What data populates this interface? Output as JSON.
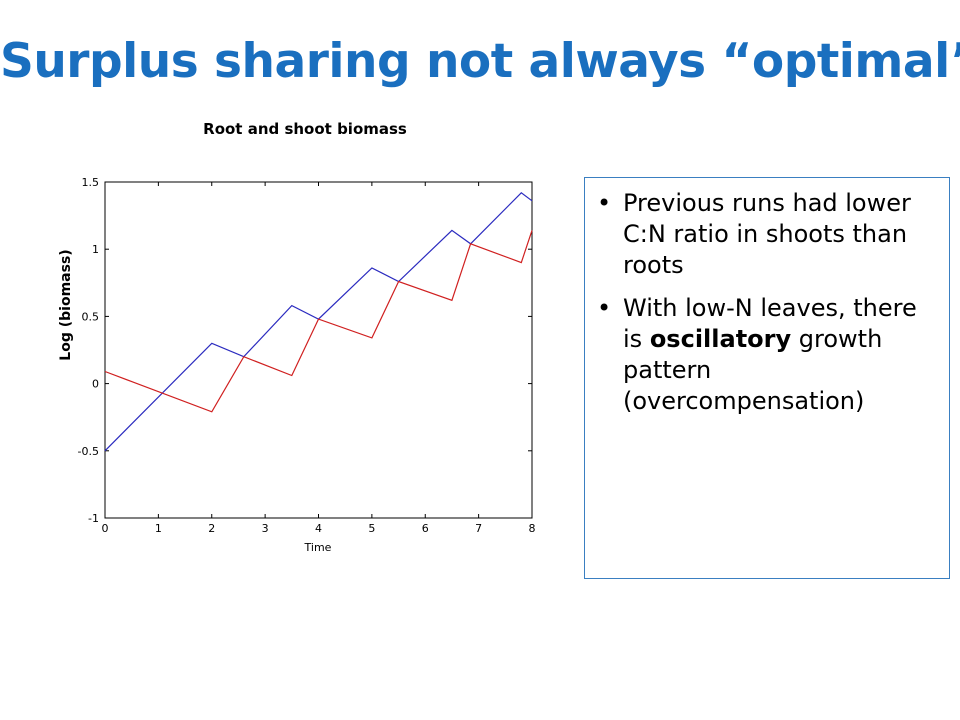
{
  "slide": {
    "title": "Surplus sharing not always “optimal”"
  },
  "bullets": [
    {
      "text": "Previous runs had lower C:N ratio in shoots than roots"
    },
    {
      "before": "With low-N leaves, there is ",
      "bold": "oscillatory",
      "after": " growth pattern (overcompensation)"
    }
  ],
  "chart_data": {
    "type": "line",
    "title": "Root and shoot biomass",
    "xlabel": "Time",
    "ylabel": "Log (biomass)",
    "xlim": [
      0,
      8
    ],
    "ylim": [
      -1,
      1.5
    ],
    "xticks": [
      "0",
      "1",
      "2",
      "3",
      "4",
      "5",
      "6",
      "7",
      "8"
    ],
    "yticks": [
      "-1",
      "-0.5",
      "0",
      "0.5",
      "1",
      "1.5"
    ],
    "grid": false,
    "legend": "none",
    "series": [
      {
        "color": "#2b2bbf",
        "x": [
          0,
          2,
          2.6,
          3.5,
          4.0,
          5.0,
          5.5,
          6.5,
          6.85,
          7.8,
          8
        ],
        "y": [
          -0.5,
          0.3,
          0.2,
          0.58,
          0.48,
          0.86,
          0.76,
          1.14,
          1.04,
          1.42,
          1.36
        ]
      },
      {
        "color": "#d02020",
        "x": [
          0,
          2,
          2.6,
          3.5,
          4.0,
          5.0,
          5.5,
          6.5,
          6.85,
          7.8,
          8
        ],
        "y": [
          0.09,
          -0.21,
          0.2,
          0.06,
          0.48,
          0.34,
          0.76,
          0.62,
          1.04,
          0.9,
          1.14
        ]
      }
    ]
  }
}
